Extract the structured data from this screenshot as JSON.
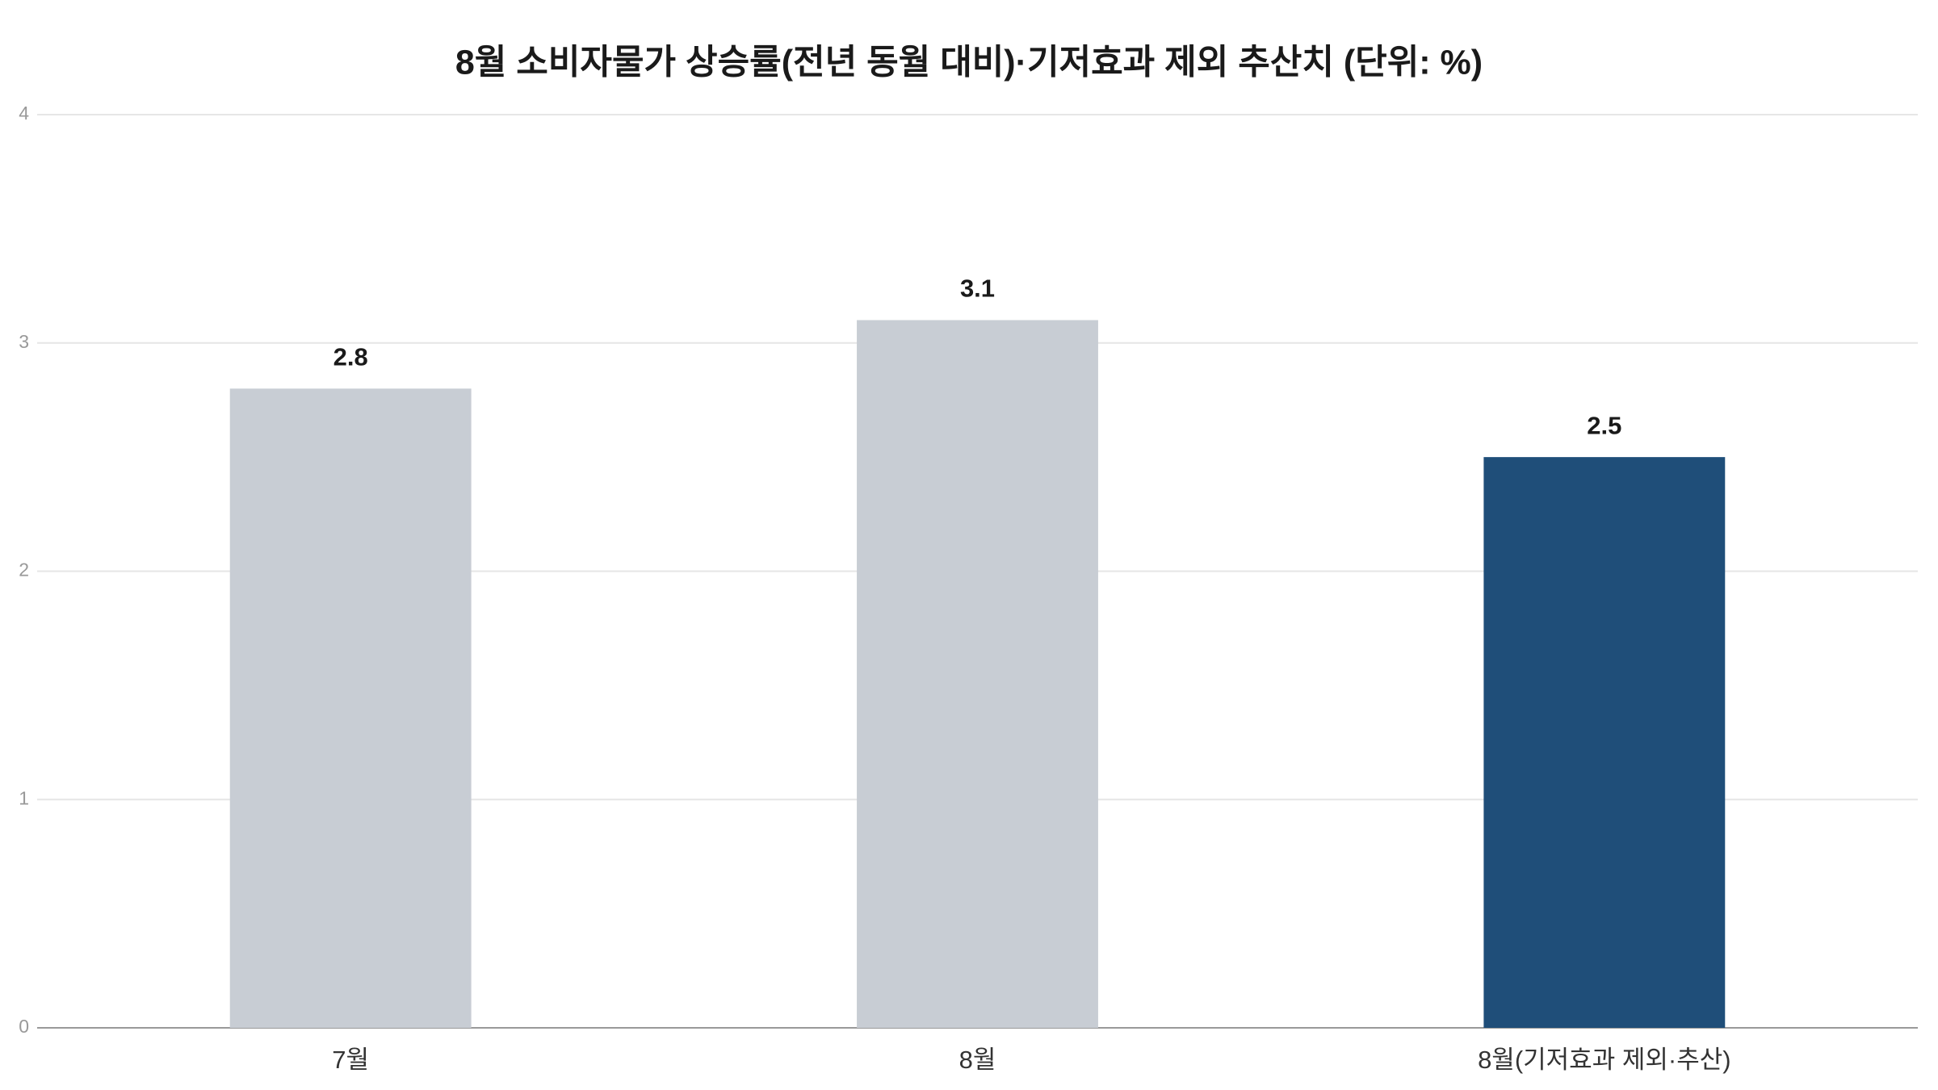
{
  "chart_data": {
    "type": "bar",
    "title": "8월 소비자물가 상승률(전년 동월 대비)·기저효과 제외 추산치 (단위: %)",
    "categories": [
      "7월",
      "8월",
      "8월(기저효과 제외·추산)"
    ],
    "values": [
      2.8,
      3.1,
      2.5
    ],
    "colors": [
      "#c8cdd4",
      "#c8cdd4",
      "#1f4e79"
    ],
    "ylim": [
      0,
      4
    ],
    "yticks": [
      0,
      1,
      2,
      3,
      4
    ],
    "grid": true
  }
}
